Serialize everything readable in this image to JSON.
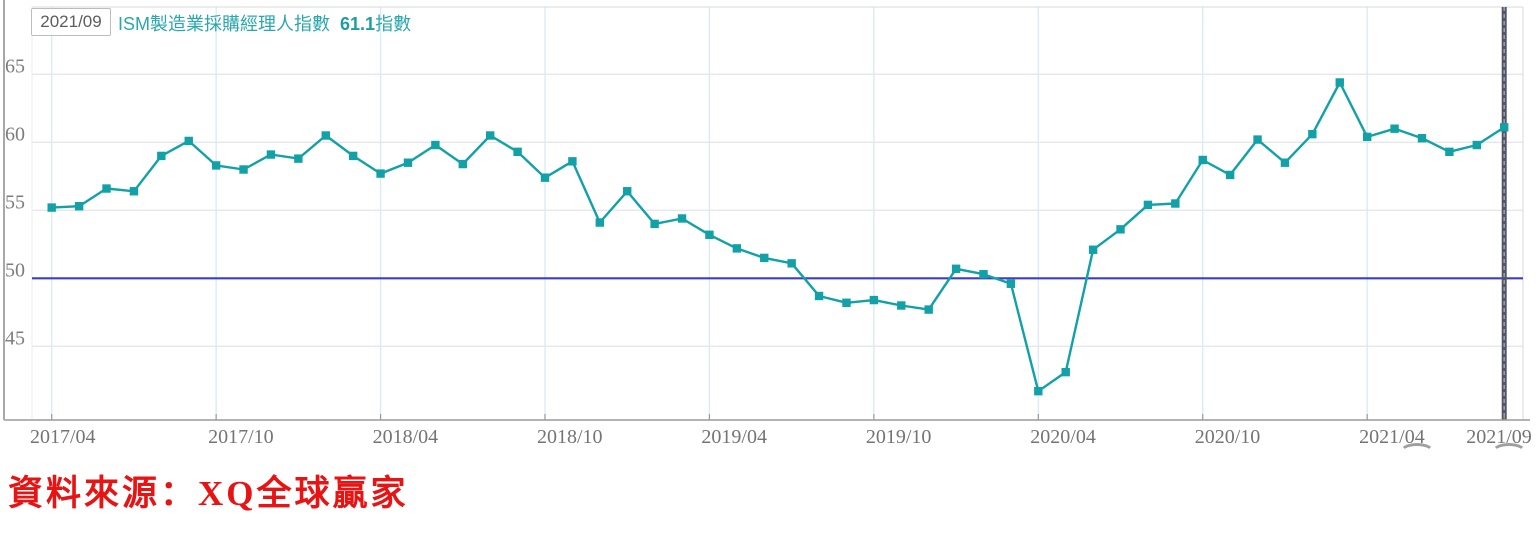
{
  "header": {
    "date": "2021/09",
    "series_title": "ISM製造業採購經理人指數",
    "value": "61.1",
    "unit": "指數"
  },
  "source": {
    "label": "資料來源：XQ全球贏家"
  },
  "colors": {
    "line": "#11a1a7",
    "title_text": "#2aa7ac",
    "reference_line": "#3c3ccd",
    "vertical_grid": "#d9eaf5",
    "horizontal_grid": "#e6e6ec",
    "axis_line": "#9a9a9a",
    "tick_text": "#757575",
    "cursor_line": "#55555e",
    "cursor_dash": "#8a9bd0",
    "source_text": "#e81313"
  },
  "chart_data": {
    "type": "line",
    "title": "ISM製造業採購經理人指數",
    "ylabel": "指數",
    "x": [
      "2017/04",
      "2017/05",
      "2017/06",
      "2017/07",
      "2017/08",
      "2017/09",
      "2017/10",
      "2017/11",
      "2017/12",
      "2018/01",
      "2018/02",
      "2018/03",
      "2018/04",
      "2018/05",
      "2018/06",
      "2018/07",
      "2018/08",
      "2018/09",
      "2018/10",
      "2018/11",
      "2018/12",
      "2019/01",
      "2019/02",
      "2019/03",
      "2019/04",
      "2019/05",
      "2019/06",
      "2019/07",
      "2019/08",
      "2019/09",
      "2019/10",
      "2019/11",
      "2019/12",
      "2020/01",
      "2020/02",
      "2020/03",
      "2020/04",
      "2020/05",
      "2020/06",
      "2020/07",
      "2020/08",
      "2020/09",
      "2020/10",
      "2020/11",
      "2020/12",
      "2021/01",
      "2021/02",
      "2021/03",
      "2021/04",
      "2021/05",
      "2021/06",
      "2021/07",
      "2021/08",
      "2021/09"
    ],
    "values": [
      55.2,
      55.3,
      56.6,
      56.4,
      59.0,
      60.1,
      58.3,
      58.0,
      59.1,
      58.8,
      60.5,
      59.0,
      57.7,
      58.5,
      59.8,
      58.4,
      60.5,
      59.3,
      57.4,
      58.6,
      54.1,
      56.4,
      54.0,
      54.4,
      53.2,
      52.2,
      51.5,
      51.1,
      48.7,
      48.2,
      48.4,
      48.0,
      47.7,
      50.7,
      50.3,
      49.6,
      41.7,
      43.1,
      52.1,
      53.6,
      55.4,
      55.5,
      58.7,
      57.6,
      60.2,
      58.5,
      60.6,
      64.4,
      60.4,
      61.0,
      60.3,
      59.3,
      59.8,
      61.1
    ],
    "y_ticks": [
      65,
      60,
      55,
      50,
      45
    ],
    "x_tick_indices": [
      0,
      6,
      12,
      18,
      24,
      30,
      36,
      42,
      48,
      53
    ],
    "ylim": [
      39.7,
      69.8
    ],
    "reference_line": 50,
    "grid": true,
    "legend_position": "none",
    "cursor_index": 53,
    "marker": "square"
  }
}
